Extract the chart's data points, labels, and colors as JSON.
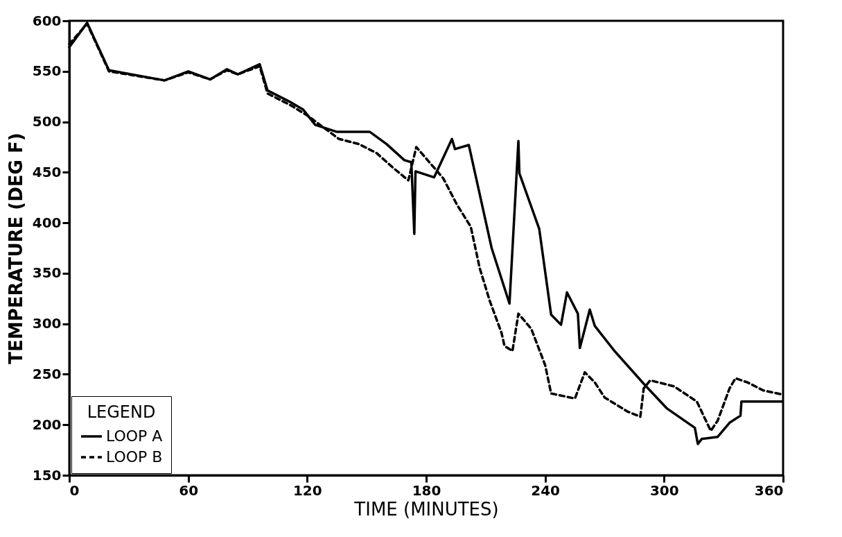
{
  "chart_data": {
    "type": "line",
    "xlabel": "TIME (MINUTES)",
    "ylabel": "TEMPERATURE (DEG F)",
    "legend_title": "LEGEND",
    "legend": "bottom left",
    "grid": false,
    "xlim": [
      0,
      360
    ],
    "xticks": [
      0,
      60,
      120,
      180,
      240,
      300,
      360
    ],
    "ylim": [
      150,
      600
    ],
    "yticks": [
      150,
      200,
      250,
      300,
      350,
      400,
      450,
      500,
      550,
      600
    ],
    "series": [
      {
        "name": "LOOP A",
        "color": "#000000",
        "line_style": "solid",
        "x": [
          0,
          9,
          20,
          48,
          60,
          71,
          79.5,
          85,
          96,
          100,
          112,
          118,
          124,
          135,
          151.6,
          160,
          169,
          172.5,
          174,
          174.6,
          184,
          193,
          194.5,
          201.5,
          213,
          222,
          226.5,
          227,
          237,
          243,
          248,
          251,
          256.5,
          257.5,
          262.5,
          265,
          275,
          290,
          301.5,
          315.5,
          317,
          319,
          327,
          333,
          338.5,
          339,
          359.5
        ],
        "values": [
          574,
          598,
          551,
          541,
          550,
          542,
          552,
          547,
          557,
          531,
          519,
          512,
          497,
          490,
          490,
          478,
          462,
          460,
          389,
          451,
          445,
          483,
          473,
          477,
          375,
          320,
          481,
          449,
          394,
          309,
          299,
          331,
          310,
          276,
          314,
          298,
          273,
          240,
          216,
          197,
          181,
          186,
          188,
          202,
          209,
          223,
          223
        ]
      },
      {
        "name": "LOOP B",
        "color": "#000000",
        "line_style": "dashed",
        "x": [
          0,
          9,
          20,
          48,
          60,
          71,
          79.5,
          85,
          96,
          100,
          112,
          121,
          136,
          146,
          155,
          163,
          171,
          175,
          181.6,
          188.6,
          195.5,
          202.5,
          207,
          212,
          218,
          219.5,
          223.5,
          226.5,
          233,
          240,
          243,
          255,
          260,
          265,
          270,
          281.6,
          288,
          289.7,
          293,
          305,
          316.5,
          323.5,
          327,
          333,
          336,
          342,
          350,
          359.5
        ],
        "values": [
          577,
          597,
          550,
          541,
          549,
          542,
          551,
          547,
          555,
          528,
          516,
          505,
          483,
          478,
          469,
          455,
          442,
          475,
          460,
          444,
          418,
          396,
          355,
          323,
          291,
          278,
          273,
          310,
          295,
          259,
          231,
          226,
          252,
          242,
          227,
          213,
          208,
          236,
          244,
          238,
          223,
          194,
          204,
          236,
          246,
          242,
          234,
          230
        ]
      }
    ]
  }
}
